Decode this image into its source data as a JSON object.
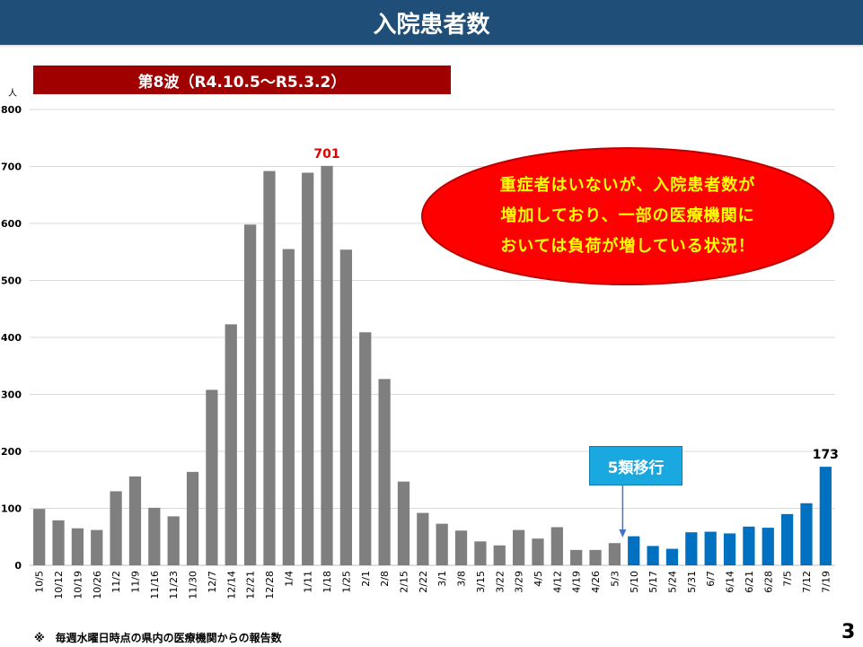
{
  "title": "入院患者数",
  "wave_banner": "第8波（R4.10.5～R5.3.2）",
  "callout": {
    "lines": [
      "重症者はいないが、入院患者数が",
      "増加しており、一部の医療機関に",
      "おいては負荷が増している状況！"
    ],
    "bg_color": "#ff0000",
    "text_color": "#ffff00"
  },
  "transition_label": "5類移行",
  "footnote": "※　毎週水曜日時点の県内の医療機関からの報告数",
  "page_number": "3",
  "colors": {
    "gray_bar": "#7f7f7f",
    "blue_bar": "#0070c0",
    "peak_label": "#e00000",
    "title_bg": "#1f4e79",
    "banner_bg": "#a00000",
    "arrow": "#4472c4"
  },
  "chart_data": {
    "type": "bar",
    "ylabel": "人",
    "ylim": [
      0,
      800
    ],
    "yticks": [
      0,
      100,
      200,
      300,
      400,
      500,
      600,
      700,
      800
    ],
    "grid": true,
    "categories": [
      "10/5",
      "10/12",
      "10/19",
      "10/26",
      "11/2",
      "11/9",
      "11/16",
      "11/23",
      "11/30",
      "12/7",
      "12/14",
      "12/21",
      "12/28",
      "1/4",
      "1/11",
      "1/18",
      "1/25",
      "2/1",
      "2/8",
      "2/15",
      "2/22",
      "3/1",
      "3/8",
      "3/15",
      "3/22",
      "3/29",
      "4/5",
      "4/12",
      "4/19",
      "4/26",
      "5/3",
      "5/10",
      "5/17",
      "5/24",
      "5/31",
      "6/7",
      "6/14",
      "6/21",
      "6/28",
      "7/5",
      "7/12",
      "7/19"
    ],
    "values": [
      99,
      79,
      65,
      62,
      130,
      156,
      101,
      86,
      164,
      308,
      423,
      598,
      692,
      555,
      689,
      701,
      554,
      409,
      327,
      147,
      92,
      73,
      61,
      42,
      35,
      62,
      47,
      67,
      27,
      27,
      39,
      51,
      34,
      29,
      58,
      59,
      56,
      68,
      66,
      90,
      109,
      173
    ],
    "blue_from_index": 31,
    "labeled": [
      {
        "category": "1/18",
        "label": "701",
        "color": "#e00000"
      },
      {
        "category": "7/19",
        "label": "173",
        "color": "#000000"
      }
    ],
    "annotation": {
      "category": "5/3",
      "text": "5類移行"
    }
  }
}
